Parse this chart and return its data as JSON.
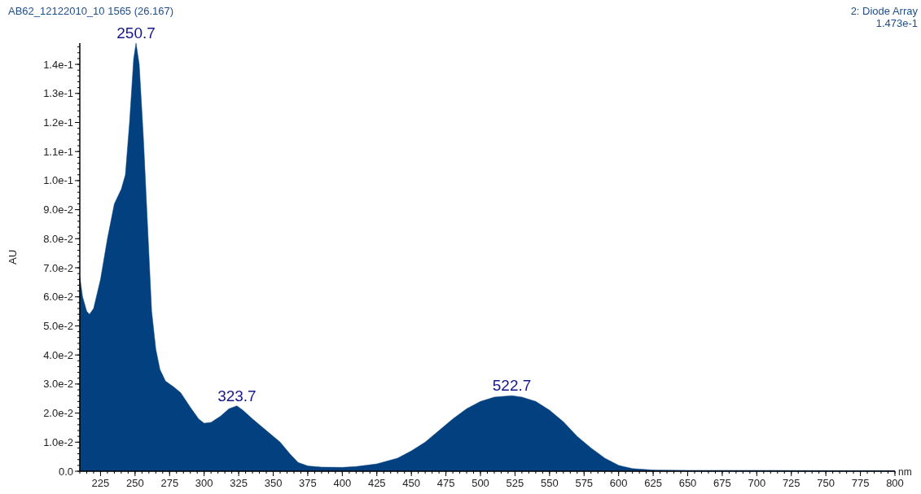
{
  "chart_data": {
    "type": "area",
    "title": "AB62_12122010_10 1565 (26.167)",
    "xlabel": "nm",
    "ylabel": "AU",
    "annotations": [
      "2: Diode Array",
      "1.473e-1",
      {
        "text": "250.7",
        "x": 250.7,
        "y": 0.1473
      },
      {
        "text": "323.7",
        "x": 323.7,
        "y": 0.0225
      },
      {
        "text": "522.7",
        "x": 522.7,
        "y": 0.026
      }
    ],
    "xlim": [
      210,
      800
    ],
    "ylim": [
      0,
      0.1473
    ],
    "xticks": [
      225,
      250,
      275,
      300,
      325,
      350,
      375,
      400,
      425,
      450,
      475,
      500,
      525,
      550,
      575,
      600,
      625,
      650,
      675,
      700,
      725,
      750,
      775,
      800
    ],
    "yticks": [
      {
        "value": 0,
        "label": "0.0"
      },
      {
        "value": 0.01,
        "label": "1.0e-2"
      },
      {
        "value": 0.02,
        "label": "2.0e-2"
      },
      {
        "value": 0.03,
        "label": "3.0e-2"
      },
      {
        "value": 0.04,
        "label": "4.0e-2"
      },
      {
        "value": 0.05,
        "label": "5.0e-2"
      },
      {
        "value": 0.06,
        "label": "6.0e-2"
      },
      {
        "value": 0.07,
        "label": "7.0e-2"
      },
      {
        "value": 0.08,
        "label": "8.0e-2"
      },
      {
        "value": 0.09,
        "label": "9.0e-2"
      },
      {
        "value": 0.1,
        "label": "1.0e-1"
      },
      {
        "value": 0.11,
        "label": "1.1e-1"
      },
      {
        "value": 0.12,
        "label": "1.2e-1"
      },
      {
        "value": 0.13,
        "label": "1.3e-1"
      },
      {
        "value": 0.14,
        "label": "1.4e-1"
      }
    ],
    "grid": false,
    "series": [
      {
        "color": "#02407f",
        "x": [
          210,
          212,
          215,
          217,
          220,
          225,
          230,
          235,
          240,
          243,
          246,
          249,
          250.7,
          253,
          256,
          259,
          262,
          265,
          268,
          272,
          278,
          283,
          290,
          296,
          300,
          305,
          312,
          318,
          323.7,
          328,
          335,
          345,
          355,
          362,
          368,
          375,
          385,
          400,
          410,
          425,
          440,
          450,
          460,
          470,
          480,
          490,
          500,
          510,
          522.7,
          530,
          540,
          550,
          560,
          570,
          580,
          590,
          600,
          610,
          625,
          650,
          700,
          750,
          800
        ],
        "values": [
          0.067,
          0.06,
          0.055,
          0.054,
          0.056,
          0.066,
          0.08,
          0.092,
          0.097,
          0.102,
          0.12,
          0.142,
          0.1473,
          0.14,
          0.115,
          0.085,
          0.055,
          0.042,
          0.035,
          0.031,
          0.029,
          0.027,
          0.022,
          0.018,
          0.0165,
          0.0168,
          0.019,
          0.0215,
          0.0225,
          0.021,
          0.018,
          0.014,
          0.01,
          0.006,
          0.003,
          0.0018,
          0.0014,
          0.0013,
          0.0016,
          0.0025,
          0.0045,
          0.007,
          0.01,
          0.014,
          0.018,
          0.0215,
          0.024,
          0.0255,
          0.026,
          0.0255,
          0.024,
          0.021,
          0.017,
          0.012,
          0.008,
          0.0045,
          0.002,
          0.0009,
          0.0004,
          0.0003,
          0.0003,
          0.0002,
          0.0002
        ]
      }
    ]
  }
}
